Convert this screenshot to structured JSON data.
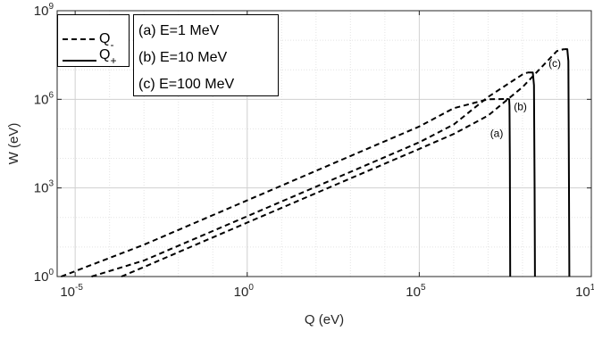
{
  "chart_data": {
    "type": "line",
    "xlabel": "Q (eV)",
    "ylabel": "W (eV)",
    "xscale": "log",
    "yscale": "log",
    "xlim": [
      3e-06,
      10000000000.0
    ],
    "ylim": [
      1,
      1000000000.0
    ],
    "grid": true,
    "x_ticks": [
      {
        "base": "10",
        "exp": "-5"
      },
      {
        "base": "10",
        "exp": "0"
      },
      {
        "base": "10",
        "exp": "5"
      },
      {
        "base": "10",
        "exp": "10"
      }
    ],
    "y_ticks": [
      {
        "base": "10",
        "exp": "0"
      },
      {
        "base": "10",
        "exp": "3"
      },
      {
        "base": "10",
        "exp": "6"
      },
      {
        "base": "10",
        "exp": "9"
      }
    ],
    "style_legend": [
      {
        "symbol": "Q",
        "sub": "-",
        "line_style": "dashed"
      },
      {
        "symbol": "Q",
        "sub": "+",
        "line_style": "solid"
      }
    ],
    "energy_legend": [
      "(a) E=1 MeV",
      "(b) E=10 MeV",
      "(c) E=100 MeV"
    ],
    "curve_labels": [
      "(a)",
      "(b)",
      "(c)"
    ],
    "series": [
      {
        "label": "(a)",
        "q_minus": {
          "x": [
            3.9e-06,
            0.001,
            1,
            1000.0,
            100000.0,
            1000000.0,
            10000000.0,
            34000000.0
          ],
          "y": [
            1,
            12.0,
            380.0,
            12000.0,
            120000.0,
            500000.0,
            1000000.0,
            1030000.0
          ]
        },
        "q_plus": {
          "x": [
            41000000.0,
            42000000.0,
            43000000.0,
            43500000.0,
            44000000.0
          ],
          "y": [
            1000000.0,
            600000.0,
            10000.0,
            100.0,
            1
          ]
        }
      },
      {
        "label": "(b)",
        "q_minus": {
          "x": [
            3e-05,
            0.001,
            1,
            1000.0,
            100000.0,
            1000000.0,
            10000000.0,
            100000000.0,
            140000000.0
          ],
          "y": [
            1,
            3.5,
            110.0,
            3500.0,
            35000.0,
            140000.0,
            1200000.0,
            7000000.0,
            8100000.0
          ]
        },
        "q_plus": {
          "x": [
            200000000.0,
            215000000.0,
            225000000.0,
            230000000.0
          ],
          "y": [
            8100000.0,
            3000000.0,
            1000.0,
            1
          ]
        }
      },
      {
        "label": "(c)",
        "q_minus": {
          "x": [
            0.00022,
            0.001,
            1,
            1000.0,
            100000.0,
            1000000.0,
            10000000.0,
            100000000.0,
            1000000000.0,
            1600000000.0
          ],
          "y": [
            1,
            2.1,
            67.0,
            2100.0,
            21000.0,
            67000.0,
            280000.0,
            2600000.0,
            43000000.0,
            50000000.0
          ]
        },
        "q_plus": {
          "x": [
            2000000000.0,
            2150000000.0,
            2250000000.0,
            2300000000.0
          ],
          "y": [
            50000000.0,
            20000000.0,
            1000.0,
            1
          ]
        }
      }
    ]
  }
}
